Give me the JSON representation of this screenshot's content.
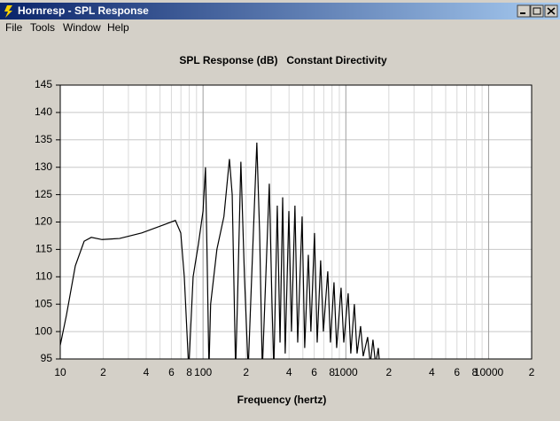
{
  "window": {
    "title": "Hornresp - SPL Response",
    "menu": [
      "File",
      "Tools",
      "Window",
      "Help"
    ]
  },
  "chart_data": {
    "type": "line",
    "title": "SPL Response (dB)",
    "subtitle": "Constant Directivity",
    "x_label": "Frequency (hertz)",
    "xscale": "log",
    "grid": true,
    "xlim": [
      10,
      20000
    ],
    "ylim": [
      95,
      145
    ],
    "yticks": [
      145,
      140,
      135,
      130,
      125,
      120,
      115,
      110,
      105,
      100,
      95
    ],
    "xticks": [
      10,
      {
        "value": 20,
        "label": "2"
      },
      {
        "value": 40,
        "label": "4"
      },
      {
        "value": 60,
        "label": "6"
      },
      {
        "value": 80,
        "label": "8"
      },
      100,
      {
        "value": 200,
        "label": "2"
      },
      {
        "value": 400,
        "label": "4"
      },
      {
        "value": 600,
        "label": "6"
      },
      {
        "value": 800,
        "label": "8"
      },
      1000,
      {
        "value": 2000,
        "label": "2"
      },
      {
        "value": 4000,
        "label": "4"
      },
      {
        "value": 6000,
        "label": "6"
      },
      {
        "value": 8000,
        "label": "8"
      },
      10000,
      {
        "value": 20000,
        "label": "2"
      }
    ],
    "xminorticks": [
      30,
      50,
      70,
      90,
      300,
      500,
      700,
      900,
      3000,
      5000,
      7000,
      9000
    ],
    "x": [
      10,
      11.05,
      12.75,
      14.7,
      16.5,
      19.6,
      26,
      37.2,
      53.2,
      64,
      69.8,
      73.9,
      77.1,
      79.4,
      81.7,
      85.2,
      92.8,
      100,
      104,
      107,
      110,
      113,
      125,
      140,
      153,
      160,
      169,
      174,
      184,
      195,
      207,
      219,
      238,
      249,
      260,
      275,
      291,
      304,
      313,
      331,
      346,
      361,
      376,
      399,
      416,
      440,
      460,
      494,
      515,
      546,
      569,
      603,
      630,
      666,
      696,
      747,
      780,
      826,
      862,
      926,
      967,
      1038,
      1083,
      1147,
      1198,
      1268,
      1323,
      1421,
      1483,
      1548,
      1616,
      1687,
      1736
    ],
    "series": [
      {
        "name": "SPL",
        "color": "#000000",
        "values": [
          97.5,
          103,
          112,
          116.5,
          117.2,
          116.8,
          117,
          118,
          119.5,
          120.3,
          118,
          110,
          100,
          93,
          100,
          110,
          116,
          122,
          130,
          112,
          93,
          105,
          115,
          121,
          131.5,
          125,
          93,
          105,
          131,
          110,
          93,
          110,
          134.5,
          118,
          93,
          110,
          127,
          105,
          93,
          123,
          98,
          124.5,
          96,
          122,
          100,
          123,
          98,
          121,
          97,
          114,
          100,
          118,
          98,
          113,
          100,
          111,
          98,
          109,
          97,
          108,
          98,
          107,
          96,
          105,
          96,
          101,
          95.5,
          99,
          94,
          98.5,
          94,
          97,
          93
        ]
      }
    ]
  }
}
